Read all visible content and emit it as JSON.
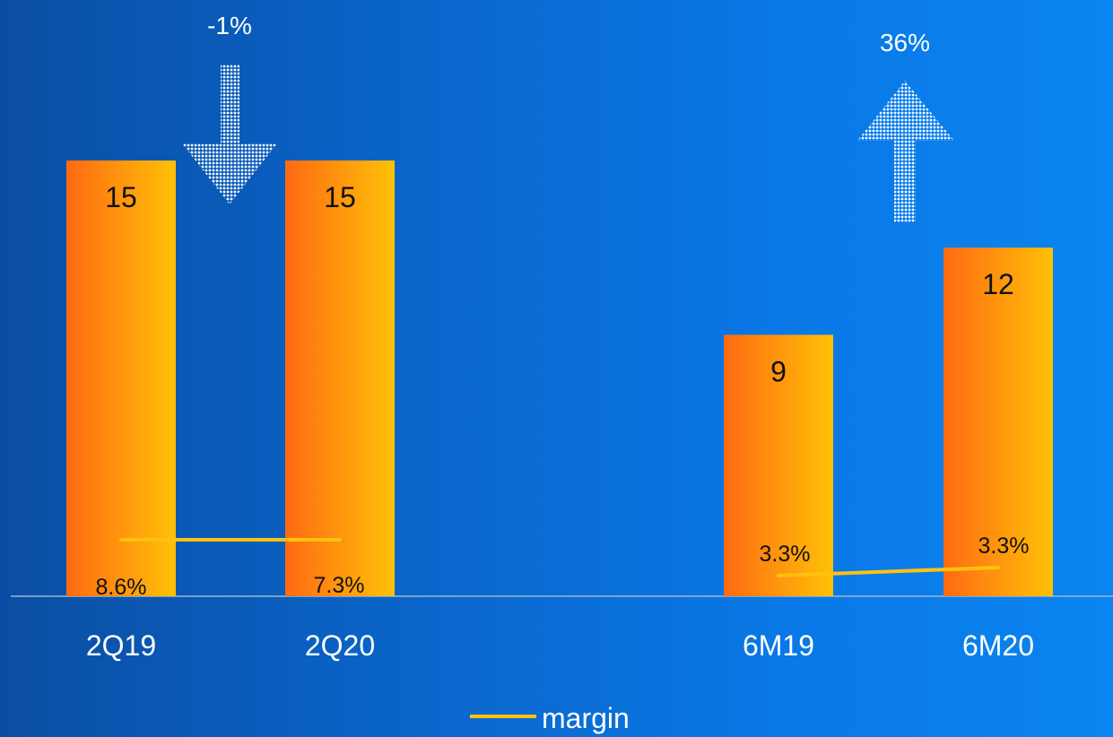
{
  "chart_data": {
    "type": "bar",
    "categories": [
      "2Q19",
      "2Q20",
      "6M19",
      "6M20"
    ],
    "series": [
      {
        "values": [
          15,
          15,
          9,
          12
        ],
        "labels": [
          "15",
          "15",
          "9",
          "12"
        ]
      },
      {
        "name": "margin",
        "type": "line",
        "values": [
          8.6,
          7.3,
          3.3,
          3.3
        ],
        "labels": [
          "8.6%",
          "7.3%",
          "3.3%",
          "3.3%"
        ]
      }
    ],
    "changes": [
      {
        "text": "-1%",
        "direction": "down"
      },
      {
        "text": "36%",
        "direction": "up"
      }
    ],
    "legend": {
      "label": "margin",
      "placement": "bottom-center"
    },
    "colors": {
      "bar_left": "#ff6a13",
      "bar_right": "#ffc107",
      "margin_line": "#ffc20e",
      "axis": "#9fb6cf",
      "arrow": "#ffffff"
    }
  }
}
